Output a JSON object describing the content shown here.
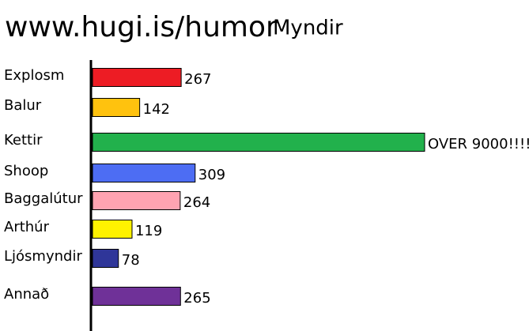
{
  "chart_data": {
    "type": "hbar",
    "title": "www.hugi.is/humor",
    "subtitle": "Myndir",
    "categories": [
      "Explosm",
      "Balur",
      "Kettir",
      "Shoop",
      "Baggalútur",
      "Arthúr",
      "Ljósmyndir",
      "Annað"
    ],
    "values": [
      267,
      142,
      9001,
      309,
      264,
      119,
      78,
      265
    ],
    "value_labels": [
      "267",
      "142",
      "OVER 9000!!!!",
      "309",
      "264",
      "119",
      "78",
      "265"
    ],
    "colors": [
      "#ed1c24",
      "#ffc20e",
      "#22b14c",
      "#4d6df3",
      "#ffa3b1",
      "#fff200",
      "#2f3699",
      "#6f3198"
    ]
  }
}
